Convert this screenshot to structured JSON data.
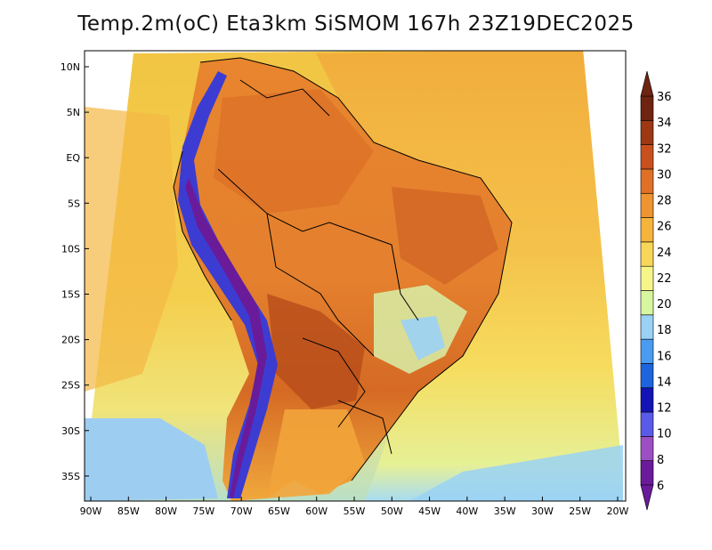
{
  "title": "Temp.2m(oC) Eta3km SiSMOM 167h 23Z19DEC2025",
  "lat_labels": [
    "10N",
    "5N",
    "EQ",
    "5S",
    "10S",
    "15S",
    "20S",
    "25S",
    "30S",
    "35S"
  ],
  "lon_labels": [
    "90W",
    "85W",
    "80W",
    "75W",
    "70W",
    "65W",
    "60W",
    "55W",
    "50W",
    "45W",
    "40W",
    "35W",
    "30W",
    "25W",
    "20W"
  ],
  "colorbar": {
    "labels": [
      "6",
      "8",
      "10",
      "12",
      "14",
      "16",
      "18",
      "20",
      "22",
      "24",
      "26",
      "28",
      "30",
      "32",
      "34",
      "36"
    ],
    "colors": [
      "#6a1b9a",
      "#9c4fc2",
      "#5a5ae8",
      "#1414b4",
      "#1e64dc",
      "#4a9cf0",
      "#9ad2f5",
      "#d8f5a0",
      "#f7f589",
      "#f8d65a",
      "#f5b43c",
      "#ee9432",
      "#e07028",
      "#c8501e",
      "#9c3814",
      "#6e2410"
    ]
  },
  "regions": {
    "ocean_pacific_n": "#f2c544",
    "ocean_pacific_s": "#9ecdf2",
    "ocean_atlantic_n": "#f2ad3c",
    "ocean_atlantic_s": "#f5db5c",
    "amazon": "#e0782c",
    "andes": "#3c3cd2"
  }
}
